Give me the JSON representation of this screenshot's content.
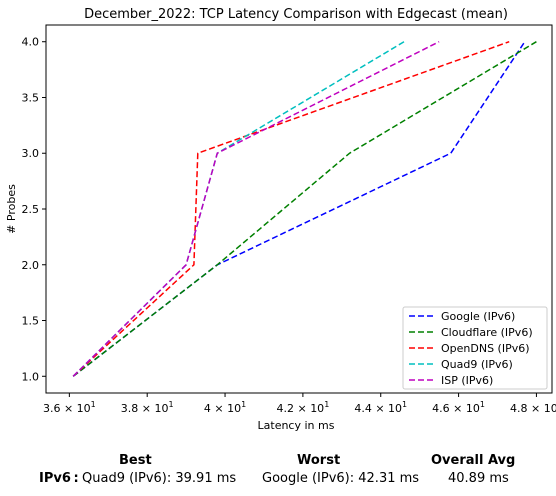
{
  "chart_data": {
    "type": "line",
    "title": "December_2022: TCP Latency Comparison with Edgecast (mean)",
    "xlabel": "Latency in ms",
    "ylabel": "# Probes",
    "xlim": [
      35.4,
      48.4
    ],
    "ylim": [
      0.85,
      4.15
    ],
    "x_ticks": [
      36,
      38,
      40,
      42,
      44,
      46,
      48
    ],
    "x_tick_labels": [
      {
        "base": "3.6",
        "mult": "× 10",
        "exp": "1"
      },
      {
        "base": "3.8",
        "mult": "× 10",
        "exp": "1"
      },
      {
        "base": "4",
        "mult": "× 10",
        "exp": "1"
      },
      {
        "base": "4.2",
        "mult": "× 10",
        "exp": "1"
      },
      {
        "base": "4.4",
        "mult": "× 10",
        "exp": "1"
      },
      {
        "base": "4.6",
        "mult": "× 10",
        "exp": "1"
      },
      {
        "base": "4.8",
        "mult": "× 10",
        "exp": "1"
      }
    ],
    "y_ticks": [
      "1.0",
      "1.5",
      "2.0",
      "2.5",
      "3.0",
      "3.5",
      "4.0"
    ],
    "grid": false,
    "legend_position": "lower right",
    "series": [
      {
        "name": "Google (IPv6)",
        "color": "#0000ff",
        "points": [
          [
            36.1,
            1.0
          ],
          [
            39.8,
            2.0
          ],
          [
            45.8,
            3.0
          ],
          [
            47.7,
            4.0
          ]
        ]
      },
      {
        "name": "Cloudflare (IPv6)",
        "color": "#008000",
        "points": [
          [
            36.1,
            1.0
          ],
          [
            39.8,
            2.0
          ],
          [
            43.2,
            3.0
          ],
          [
            48.0,
            4.0
          ]
        ]
      },
      {
        "name": "OpenDNS (IPv6)",
        "color": "#ff0000",
        "points": [
          [
            36.1,
            1.0
          ],
          [
            39.2,
            2.0
          ],
          [
            39.3,
            3.0
          ],
          [
            47.3,
            4.0
          ]
        ]
      },
      {
        "name": "Quad9 (IPv6)",
        "color": "#00bfbf",
        "points": [
          [
            36.1,
            1.0
          ],
          [
            39.0,
            2.0
          ],
          [
            39.8,
            3.0
          ],
          [
            44.6,
            4.0
          ]
        ]
      },
      {
        "name": "ISP (IPv6)",
        "color": "#bf00bf",
        "points": [
          [
            36.1,
            1.0
          ],
          [
            39.0,
            2.0
          ],
          [
            39.8,
            3.0
          ],
          [
            45.5,
            4.0
          ]
        ]
      }
    ]
  },
  "summary": {
    "best_header": "Best",
    "worst_header": "Worst",
    "avg_header": "Overall Avg",
    "row_label": "IPv6 :",
    "best_value": "Quad9 (IPv6): 39.91 ms",
    "worst_value": "Google (IPv6): 42.31 ms",
    "avg_value": "40.89 ms"
  }
}
